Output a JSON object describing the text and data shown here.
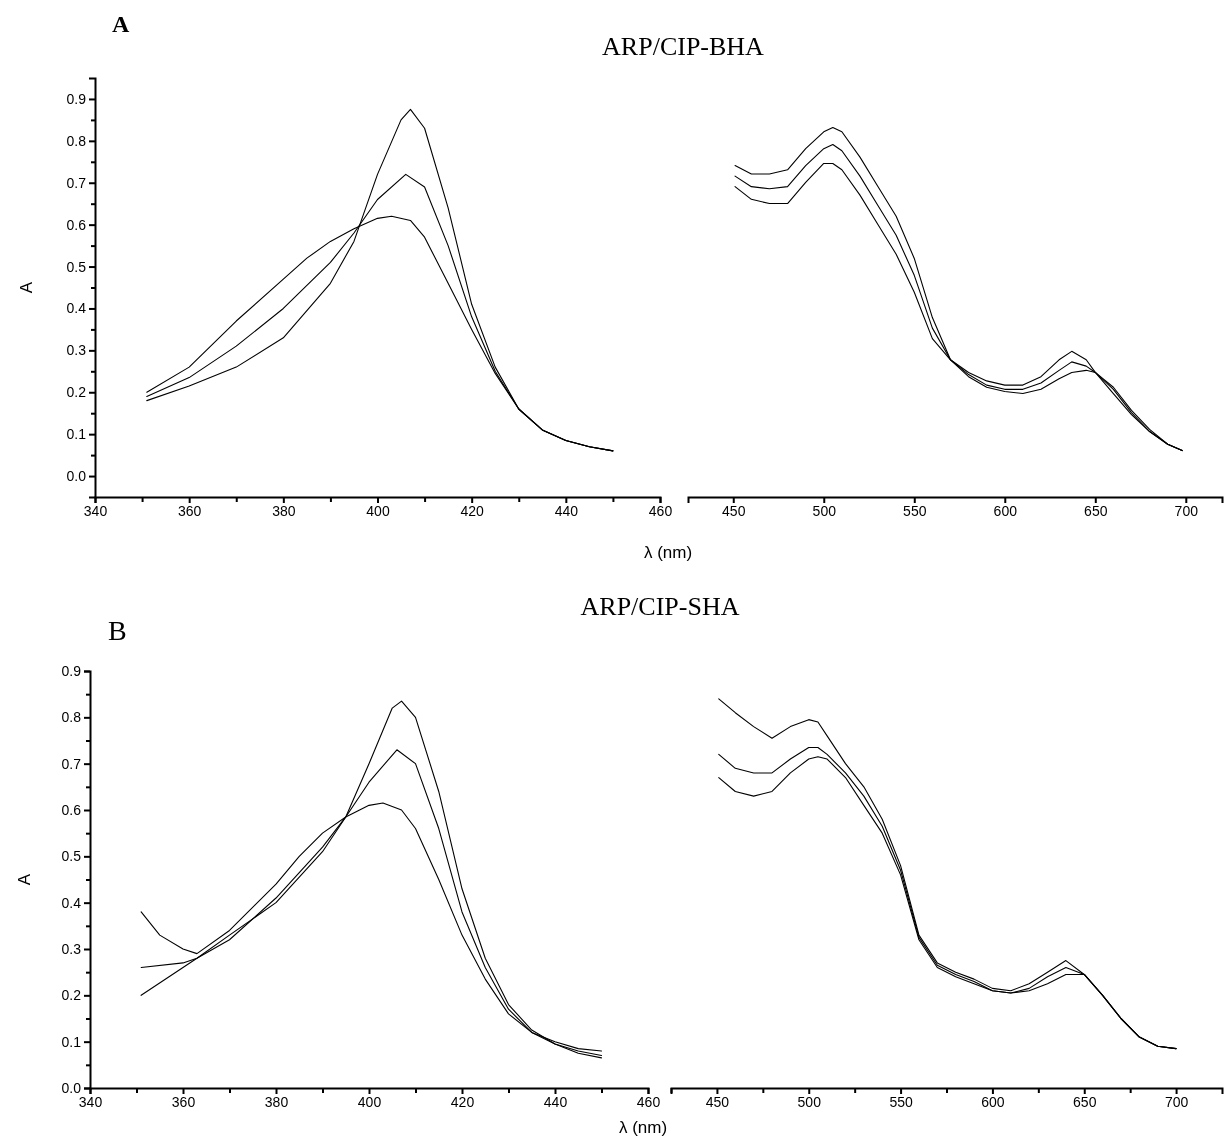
{
  "chart_data": [
    {
      "type": "line",
      "title": "ARP/CIP-BHA",
      "xlabel": "λ (nm)",
      "ylabel": "A",
      "annotations": [
        "A"
      ],
      "xlim": [
        340,
        460
      ],
      "xticks": [
        340,
        {
          "value": 350,
          "label": null
        },
        360,
        {
          "value": 370,
          "label": null
        },
        380,
        {
          "value": 390,
          "label": null
        },
        400,
        {
          "value": 410,
          "label": null
        },
        420,
        {
          "value": 430,
          "label": null
        },
        440,
        {
          "value": 450,
          "label": null
        },
        460
      ],
      "ylim": [
        -0.05,
        0.95
      ],
      "yticks": [
        {
          "value": 0,
          "label": "0.0"
        },
        {
          "value": 0.05,
          "label": null
        },
        0.1,
        {
          "value": 0.15,
          "label": null
        },
        0.2,
        {
          "value": 0.25,
          "label": null
        },
        0.3,
        {
          "value": 0.35,
          "label": null
        },
        0.4,
        {
          "value": 0.45,
          "label": null
        },
        0.5,
        {
          "value": 0.55,
          "label": null
        },
        0.6,
        {
          "value": 0.65,
          "label": null
        },
        0.7,
        {
          "value": 0.75,
          "label": null
        },
        0.8,
        {
          "value": 0.85,
          "label": null
        },
        0.9
      ],
      "line_style": "solid",
      "series": [
        {
          "color": "#000000",
          "x": [
            351,
            360,
            370,
            380,
            390,
            395,
            400,
            405,
            407,
            410,
            415,
            420,
            425,
            430,
            435,
            440,
            445,
            450
          ],
          "values": [
            0.18,
            0.215,
            0.26,
            0.33,
            0.46,
            0.56,
            0.72,
            0.85,
            0.875,
            0.83,
            0.64,
            0.41,
            0.26,
            0.16,
            0.11,
            0.085,
            0.07,
            0.06
          ]
        },
        {
          "color": "#000000",
          "x": [
            351,
            360,
            370,
            380,
            390,
            395,
            400,
            406,
            410,
            415,
            420,
            425,
            430,
            435,
            440,
            445,
            450
          ],
          "values": [
            0.19,
            0.235,
            0.31,
            0.4,
            0.51,
            0.58,
            0.66,
            0.72,
            0.69,
            0.55,
            0.38,
            0.25,
            0.16,
            0.11,
            0.085,
            0.07,
            0.06
          ]
        },
        {
          "color": "#000000",
          "x": [
            351,
            360,
            370,
            380,
            385,
            390,
            395,
            400,
            403,
            407,
            410,
            415,
            420,
            425,
            430,
            435,
            440,
            445,
            450
          ],
          "values": [
            0.2,
            0.26,
            0.37,
            0.47,
            0.52,
            0.56,
            0.59,
            0.615,
            0.62,
            0.61,
            0.57,
            0.46,
            0.35,
            0.245,
            0.16,
            0.11,
            0.085,
            0.07,
            0.06
          ]
        }
      ]
    },
    {
      "type": "line",
      "tick_labels": "x",
      "xlim": [
        425,
        720
      ],
      "xticks": [
        450,
        500,
        550,
        600,
        650,
        700
      ],
      "ylim": [
        0,
        0.9
      ],
      "line_style": "solid",
      "x": [
        451,
        460,
        470,
        480,
        490,
        500,
        505,
        510,
        520,
        530,
        540,
        550,
        560,
        570,
        580,
        590,
        600,
        610,
        620,
        630,
        637,
        645,
        650,
        660,
        670,
        680,
        690,
        698
      ],
      "series": [
        {
          "color": "#000000",
          "values": [
            0.74,
            0.72,
            0.72,
            0.73,
            0.78,
            0.82,
            0.83,
            0.82,
            0.76,
            0.69,
            0.62,
            0.52,
            0.38,
            0.28,
            0.25,
            0.23,
            0.22,
            0.22,
            0.24,
            0.28,
            0.3,
            0.28,
            0.25,
            0.2,
            0.15,
            0.11,
            0.08,
            0.065
          ]
        },
        {
          "color": "#000000",
          "values": [
            0.715,
            0.69,
            0.685,
            0.69,
            0.74,
            0.78,
            0.79,
            0.775,
            0.715,
            0.645,
            0.575,
            0.48,
            0.355,
            0.28,
            0.245,
            0.22,
            0.21,
            0.21,
            0.225,
            0.255,
            0.275,
            0.265,
            0.25,
            0.21,
            0.155,
            0.11,
            0.08,
            0.065
          ]
        },
        {
          "color": "#000000",
          "values": [
            0.69,
            0.66,
            0.65,
            0.65,
            0.7,
            0.745,
            0.745,
            0.73,
            0.67,
            0.6,
            0.53,
            0.44,
            0.33,
            0.28,
            0.24,
            0.215,
            0.205,
            0.2,
            0.21,
            0.235,
            0.25,
            0.255,
            0.25,
            0.215,
            0.16,
            0.115,
            0.08,
            0.065
          ]
        }
      ]
    },
    {
      "type": "line",
      "title": "ARP/CIP-SHA",
      "xlabel": "λ (nm)",
      "ylabel": "A",
      "annotations": [
        "B"
      ],
      "xlim": [
        340,
        460
      ],
      "xticks": [
        340,
        {
          "value": 350,
          "label": null
        },
        360,
        {
          "value": 370,
          "label": null
        },
        380,
        {
          "value": 390,
          "label": null
        },
        400,
        {
          "value": 410,
          "label": null
        },
        420,
        {
          "value": 430,
          "label": null
        },
        440,
        {
          "value": 450,
          "label": null
        },
        460
      ],
      "ylim": [
        0,
        0.9
      ],
      "yticks": [
        {
          "value": 0,
          "label": "0.0"
        },
        {
          "value": 0.05,
          "label": null
        },
        0.1,
        {
          "value": 0.15,
          "label": null
        },
        0.2,
        {
          "value": 0.25,
          "label": null
        },
        0.3,
        {
          "value": 0.35,
          "label": null
        },
        0.4,
        {
          "value": 0.45,
          "label": null
        },
        0.5,
        {
          "value": 0.55,
          "label": null
        },
        0.6,
        {
          "value": 0.65,
          "label": null
        },
        0.7,
        {
          "value": 0.75,
          "label": null
        },
        0.8,
        {
          "value": 0.85,
          "label": null
        },
        0.9
      ],
      "line_style": "solid",
      "series": [
        {
          "color": "#000000",
          "x": [
            351,
            360,
            363,
            370,
            380,
            390,
            395,
            400,
            405,
            407,
            410,
            415,
            420,
            425,
            430,
            435,
            440,
            445,
            450
          ],
          "values": [
            0.2,
            0.26,
            0.28,
            0.33,
            0.4,
            0.51,
            0.585,
            0.7,
            0.82,
            0.835,
            0.8,
            0.64,
            0.43,
            0.28,
            0.18,
            0.125,
            0.095,
            0.075,
            0.065
          ]
        },
        {
          "color": "#000000",
          "x": [
            351,
            360,
            363,
            370,
            380,
            390,
            395,
            400,
            406,
            410,
            415,
            420,
            425,
            430,
            435,
            440,
            445,
            450
          ],
          "values": [
            0.26,
            0.27,
            0.28,
            0.32,
            0.41,
            0.52,
            0.585,
            0.66,
            0.73,
            0.7,
            0.56,
            0.38,
            0.26,
            0.17,
            0.12,
            0.095,
            0.08,
            0.07
          ]
        },
        {
          "color": "#000000",
          "x": [
            351,
            355,
            360,
            363,
            370,
            380,
            385,
            390,
            395,
            400,
            403,
            407,
            410,
            415,
            420,
            425,
            430,
            435,
            440,
            445,
            450
          ],
          "values": [
            0.38,
            0.33,
            0.3,
            0.29,
            0.34,
            0.44,
            0.5,
            0.55,
            0.585,
            0.61,
            0.615,
            0.6,
            0.56,
            0.45,
            0.33,
            0.235,
            0.16,
            0.12,
            0.1,
            0.085,
            0.08
          ]
        }
      ]
    },
    {
      "type": "line",
      "tick_labels": "x",
      "xlim": [
        425,
        725
      ],
      "xticks": [
        {
          "value": 425,
          "label": null
        },
        450,
        {
          "value": 475,
          "label": null
        },
        500,
        {
          "value": 525,
          "label": null
        },
        550,
        {
          "value": 575,
          "label": null
        },
        600,
        {
          "value": 625,
          "label": null
        },
        650,
        {
          "value": 675,
          "label": null
        },
        700
      ],
      "ylim": [
        0,
        0.9
      ],
      "line_style": "solid",
      "x": [
        451,
        460,
        470,
        480,
        490,
        500,
        505,
        510,
        520,
        530,
        540,
        550,
        560,
        570,
        580,
        590,
        600,
        610,
        620,
        630,
        640,
        650,
        660,
        670,
        680,
        690,
        700
      ],
      "series": [
        {
          "color": "#000000",
          "values": [
            0.84,
            0.81,
            0.78,
            0.755,
            0.78,
            0.795,
            0.79,
            0.76,
            0.7,
            0.65,
            0.58,
            0.48,
            0.33,
            0.27,
            0.25,
            0.235,
            0.215,
            0.21,
            0.225,
            0.25,
            0.275,
            0.245,
            0.2,
            0.15,
            0.11,
            0.09,
            0.085
          ]
        },
        {
          "color": "#000000",
          "values": [
            0.72,
            0.69,
            0.68,
            0.68,
            0.71,
            0.735,
            0.735,
            0.72,
            0.68,
            0.63,
            0.565,
            0.47,
            0.325,
            0.265,
            0.245,
            0.23,
            0.21,
            0.205,
            0.215,
            0.24,
            0.26,
            0.245,
            0.2,
            0.15,
            0.11,
            0.09,
            0.085
          ]
        },
        {
          "color": "#000000",
          "values": [
            0.67,
            0.64,
            0.63,
            0.64,
            0.68,
            0.71,
            0.715,
            0.71,
            0.67,
            0.61,
            0.55,
            0.46,
            0.32,
            0.26,
            0.24,
            0.225,
            0.21,
            0.205,
            0.21,
            0.225,
            0.245,
            0.245,
            0.2,
            0.15,
            0.11,
            0.09,
            0.085
          ]
        }
      ]
    }
  ]
}
